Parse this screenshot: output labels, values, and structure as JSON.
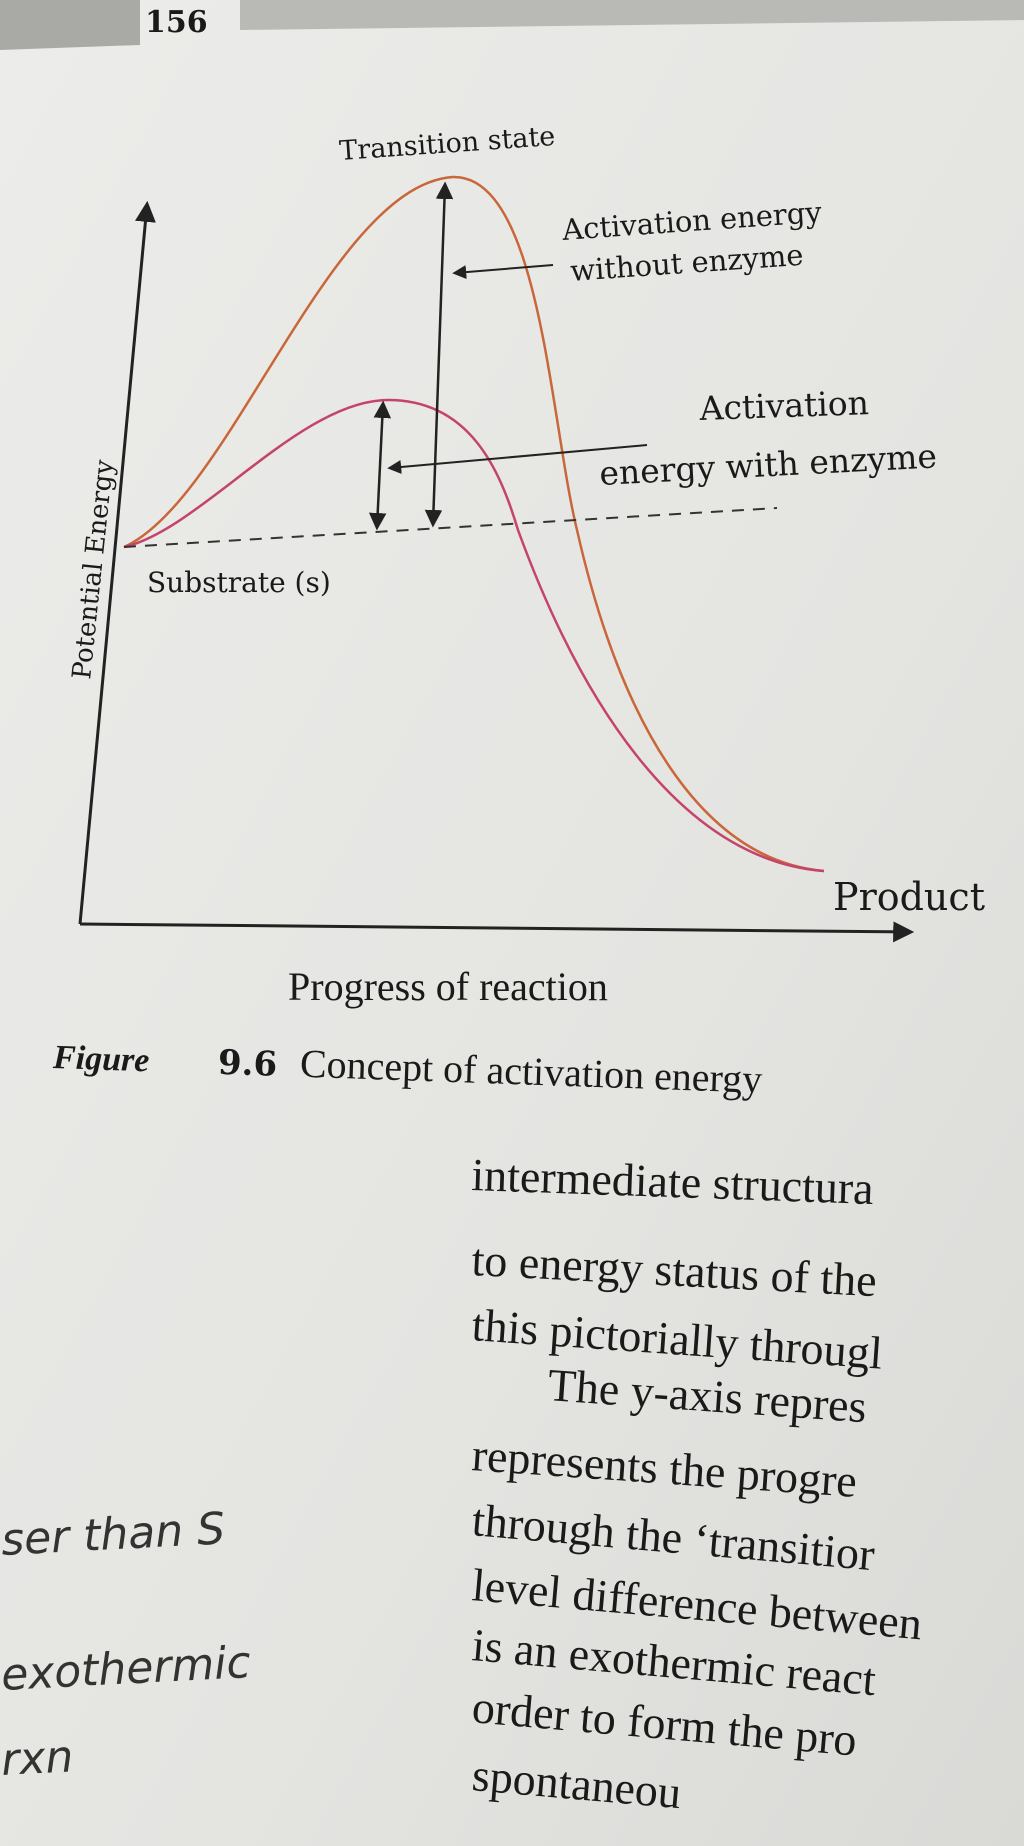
{
  "page_number": "156",
  "figure": {
    "transition_state": "Transition state",
    "ea_without_line1": "Activation energy",
    "ea_without_line2": "without enzyme",
    "ea_with_line1": "Activation",
    "ea_with_line2": "energy with enzyme",
    "substrate": "Substrate (s)",
    "y_axis_label": "Potential Energy",
    "product": "Product",
    "x_axis_label": "Progress of reaction",
    "caption_label": "Figure",
    "caption_number": "9.6",
    "caption_text": "Concept of activation energy"
  },
  "body_lines": [
    "intermediate structura",
    "to energy status of the",
    "this pictorially througl",
    "The y-axis repres",
    "represents the progre",
    "through the ‘transitior",
    "level difference between",
    "is an exothermic react",
    "order to form the pro",
    "spontaneou"
  ],
  "handwritten_notes": [
    "ser than S",
    "exothermic",
    "rxn"
  ]
}
